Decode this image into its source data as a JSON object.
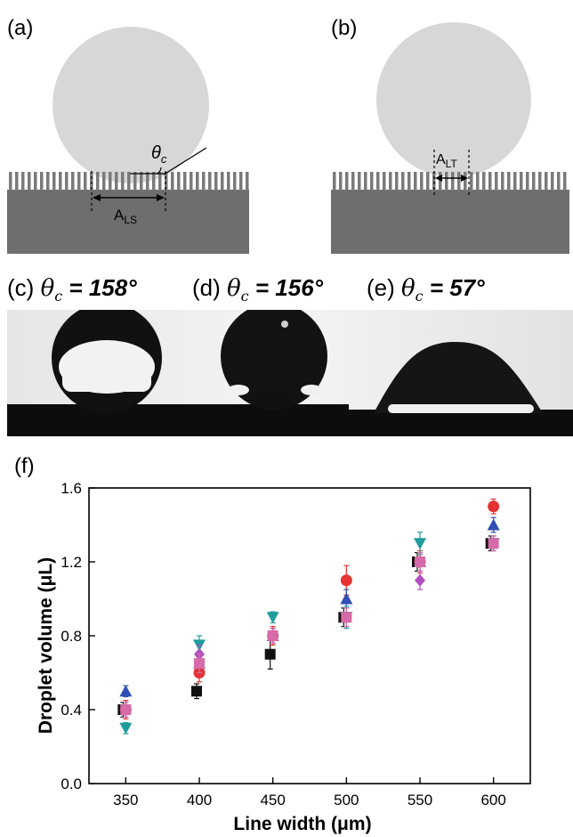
{
  "panels": {
    "a": {
      "label": "(a)",
      "angle_symbol": "θ",
      "angle_sub": "c",
      "area_label": "A",
      "area_sub": "LS"
    },
    "b": {
      "label": "(b)",
      "area_label": "A",
      "area_sub": "LT"
    }
  },
  "photos": [
    {
      "label": "(c)",
      "theta": "θ",
      "sub": "c",
      "value": "= 158°"
    },
    {
      "label": "(d)",
      "theta": "θ",
      "sub": "c",
      "value": "= 156°"
    },
    {
      "label": "(e)",
      "theta": "θ",
      "sub": "c",
      "value": "= 57°"
    }
  ],
  "chart_label": "(f)",
  "chart_data": {
    "type": "scatter",
    "xlabel": "Line width (μm)",
    "ylabel": "Droplet volume (μL)",
    "x_ticks": [
      "350",
      "400",
      "450",
      "500",
      "550",
      "600"
    ],
    "y_ticks": [
      "0.0",
      "0.4",
      "0.8",
      "1.2",
      "1.6"
    ],
    "xlim": [
      325,
      625
    ],
    "ylim": [
      0.0,
      1.6
    ],
    "colors": {
      "square_black": "#111111",
      "circle_red": "#e53232",
      "triangle_blue": "#2e4fb5",
      "triangle_down_teal": "#1f9c9c",
      "diamond_purple": "#b04fc0",
      "square_pink": "#d76aa8"
    },
    "series": [
      {
        "marker": "square",
        "color": "#111111",
        "x": [
          350,
          400,
          450,
          500,
          550,
          600
        ],
        "y": [
          0.4,
          0.5,
          0.7,
          0.9,
          1.2,
          1.3
        ],
        "err": [
          0.04,
          0.04,
          0.08,
          0.05,
          0.05,
          0.04
        ]
      },
      {
        "marker": "circle",
        "color": "#e53232",
        "x": [
          350,
          400,
          450,
          500,
          550,
          600
        ],
        "y": [
          0.4,
          0.6,
          0.8,
          1.1,
          1.2,
          1.5
        ],
        "err": [
          0.05,
          0.05,
          0.05,
          0.08,
          0.06,
          0.04
        ]
      },
      {
        "marker": "triangle-up",
        "color": "#2e4fb5",
        "x": [
          350,
          400,
          450,
          500,
          550,
          600
        ],
        "y": [
          0.5,
          0.65,
          0.8,
          1.0,
          1.2,
          1.4
        ],
        "err": [
          0.03,
          0.05,
          0.04,
          0.05,
          0.05,
          0.04
        ]
      },
      {
        "marker": "triangle-down",
        "color": "#1f9c9c",
        "x": [
          350,
          400,
          450,
          500,
          550,
          600
        ],
        "y": [
          0.3,
          0.75,
          0.9,
          0.9,
          1.3,
          1.3
        ],
        "err": [
          0.03,
          0.05,
          0.03,
          0.06,
          0.06,
          0.04
        ]
      },
      {
        "marker": "diamond",
        "color": "#b04fc0",
        "x": [
          350,
          400,
          450,
          500,
          550,
          600
        ],
        "y": [
          0.4,
          0.7,
          0.8,
          0.9,
          1.1,
          1.3
        ],
        "err": [
          0.04,
          0.05,
          0.04,
          0.05,
          0.05,
          0.04
        ]
      },
      {
        "marker": "square",
        "color": "#d76aa8",
        "x": [
          350,
          400,
          450,
          500,
          550,
          600
        ],
        "y": [
          0.4,
          0.65,
          0.8,
          0.9,
          1.2,
          1.3
        ],
        "err": [
          0.04,
          0.05,
          0.04,
          0.05,
          0.05,
          0.04
        ]
      }
    ]
  }
}
